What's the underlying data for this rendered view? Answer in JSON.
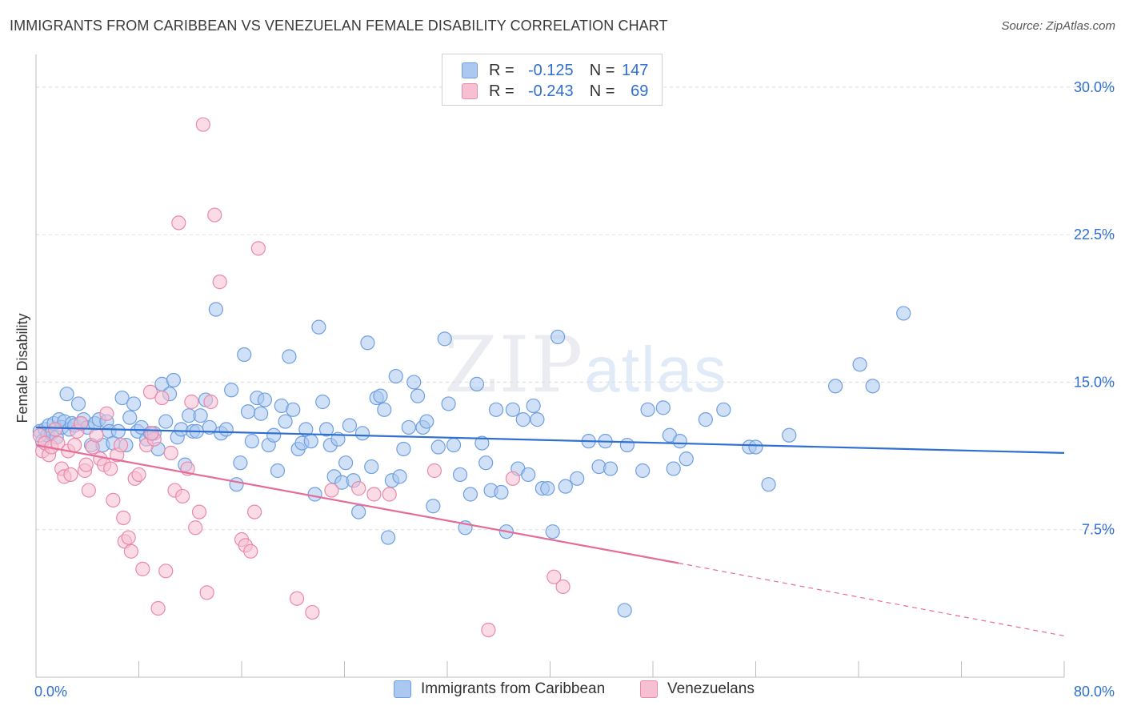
{
  "title": "IMMIGRANTS FROM CARIBBEAN VS VENEZUELAN FEMALE DISABILITY CORRELATION CHART",
  "source": "Source: ZipAtlas.com",
  "watermark": {
    "zip": "ZIP",
    "atlas": "atlas"
  },
  "legend": {
    "rows": [
      {
        "r_label": "R =",
        "r_value": "-0.125",
        "n_label": "N =",
        "n_value": "147",
        "color": "#aac8f0",
        "border": "#6f9fe0"
      },
      {
        "r_label": "R =",
        "r_value": "-0.243",
        "n_label": "N =",
        "n_value": "69",
        "color": "#f7c0d2",
        "border": "#e889a9"
      }
    ]
  },
  "bottom_legend": [
    {
      "label": "Immigrants from Caribbean",
      "color": "#aac8f0",
      "border": "#6f9fe0"
    },
    {
      "label": "Venezuelans",
      "color": "#f7c0d2",
      "border": "#e889a9"
    }
  ],
  "chart_data": {
    "type": "scatter",
    "ylabel": "Female Disability",
    "xlim": [
      0,
      80
    ],
    "ylim": [
      0,
      31.5
    ],
    "x_tick_labels": [
      {
        "value": 0,
        "label": "0.0%"
      },
      {
        "value": 80,
        "label": "80.0%"
      }
    ],
    "y_tick_labels": [
      {
        "value": 7.5,
        "label": "7.5%"
      },
      {
        "value": 15,
        "label": "15.0%"
      },
      {
        "value": 22.5,
        "label": "22.5%"
      },
      {
        "value": 30,
        "label": "30.0%"
      }
    ],
    "grid": true,
    "series": [
      {
        "name": "Immigrants from Caribbean",
        "color": "#aac8f0",
        "stroke": "#6f9fe0",
        "trend": {
          "x0": 0,
          "y0": 12.7,
          "x1": 80,
          "y1": 11.4,
          "color": "#2e6fd1"
        },
        "points": [
          [
            0.3,
            12.5
          ],
          [
            0.5,
            12.0
          ],
          [
            0.7,
            12.6
          ],
          [
            0.9,
            12.3
          ],
          [
            1.0,
            12.8
          ],
          [
            1.2,
            12.4
          ],
          [
            1.4,
            12.9
          ],
          [
            1.6,
            12.2
          ],
          [
            1.8,
            13.1
          ],
          [
            2.0,
            12.7
          ],
          [
            2.2,
            13.0
          ],
          [
            2.4,
            14.4
          ],
          [
            2.6,
            12.6
          ],
          [
            2.8,
            12.9
          ],
          [
            3.0,
            12.8
          ],
          [
            3.3,
            13.9
          ],
          [
            3.5,
            12.9
          ],
          [
            3.7,
            13.1
          ],
          [
            4.0,
            12.7
          ],
          [
            4.3,
            11.8
          ],
          [
            4.6,
            12.9
          ],
          [
            4.9,
            13.1
          ],
          [
            5.2,
            11.8
          ],
          [
            5.5,
            13.0
          ],
          [
            5.7,
            12.5
          ],
          [
            6.0,
            11.9
          ],
          [
            6.4,
            12.5
          ],
          [
            6.7,
            14.2
          ],
          [
            7.0,
            11.8
          ],
          [
            7.3,
            13.2
          ],
          [
            7.6,
            13.9
          ],
          [
            7.9,
            12.5
          ],
          [
            8.2,
            12.7
          ],
          [
            8.6,
            12.1
          ],
          [
            8.9,
            12.4
          ],
          [
            9.2,
            12.4
          ],
          [
            9.5,
            11.6
          ],
          [
            9.8,
            14.9
          ],
          [
            10.1,
            13.0
          ],
          [
            10.4,
            14.4
          ],
          [
            10.7,
            15.1
          ],
          [
            11.0,
            12.2
          ],
          [
            11.3,
            12.6
          ],
          [
            11.6,
            10.8
          ],
          [
            11.9,
            13.3
          ],
          [
            12.2,
            12.5
          ],
          [
            12.5,
            12.5
          ],
          [
            13.2,
            14.1
          ],
          [
            12.8,
            13.3
          ],
          [
            13.5,
            12.7
          ],
          [
            14.0,
            18.7
          ],
          [
            14.4,
            12.4
          ],
          [
            14.8,
            12.6
          ],
          [
            15.2,
            14.6
          ],
          [
            15.6,
            9.8
          ],
          [
            15.9,
            10.9
          ],
          [
            16.2,
            16.4
          ],
          [
            16.5,
            13.5
          ],
          [
            16.8,
            12.0
          ],
          [
            17.2,
            14.2
          ],
          [
            17.5,
            13.4
          ],
          [
            17.8,
            14.1
          ],
          [
            18.1,
            11.8
          ],
          [
            18.5,
            12.3
          ],
          [
            18.8,
            10.5
          ],
          [
            19.1,
            13.8
          ],
          [
            19.4,
            13.0
          ],
          [
            19.7,
            16.3
          ],
          [
            20.0,
            13.6
          ],
          [
            20.4,
            11.6
          ],
          [
            20.7,
            11.9
          ],
          [
            21.0,
            12.6
          ],
          [
            21.4,
            12.0
          ],
          [
            21.7,
            9.3
          ],
          [
            22.0,
            17.8
          ],
          [
            22.3,
            14.0
          ],
          [
            22.6,
            12.6
          ],
          [
            22.9,
            11.8
          ],
          [
            23.2,
            10.2
          ],
          [
            23.5,
            12.1
          ],
          [
            23.8,
            9.9
          ],
          [
            24.1,
            10.9
          ],
          [
            24.4,
            12.8
          ],
          [
            24.7,
            10.0
          ],
          [
            25.1,
            8.4
          ],
          [
            25.4,
            12.4
          ],
          [
            25.8,
            17.0
          ],
          [
            26.1,
            10.7
          ],
          [
            26.5,
            14.2
          ],
          [
            26.8,
            14.3
          ],
          [
            27.1,
            13.6
          ],
          [
            27.4,
            7.1
          ],
          [
            27.7,
            10.0
          ],
          [
            28.0,
            15.3
          ],
          [
            28.3,
            10.2
          ],
          [
            28.6,
            11.6
          ],
          [
            29.0,
            12.7
          ],
          [
            29.4,
            15.0
          ],
          [
            29.7,
            14.3
          ],
          [
            30.1,
            12.7
          ],
          [
            30.4,
            13.0
          ],
          [
            30.9,
            8.7
          ],
          [
            31.3,
            11.7
          ],
          [
            31.8,
            17.2
          ],
          [
            32.1,
            13.9
          ],
          [
            32.5,
            11.8
          ],
          [
            33.0,
            10.3
          ],
          [
            33.4,
            7.6
          ],
          [
            33.8,
            9.3
          ],
          [
            34.3,
            14.9
          ],
          [
            34.7,
            11.9
          ],
          [
            35.0,
            10.9
          ],
          [
            35.4,
            9.5
          ],
          [
            35.8,
            13.6
          ],
          [
            36.2,
            9.4
          ],
          [
            36.6,
            7.4
          ],
          [
            37.1,
            13.6
          ],
          [
            37.5,
            10.6
          ],
          [
            37.9,
            13.1
          ],
          [
            38.3,
            10.3
          ],
          [
            38.7,
            13.8
          ],
          [
            39.0,
            13.1
          ],
          [
            39.4,
            9.6
          ],
          [
            39.8,
            9.6
          ],
          [
            40.2,
            7.4
          ],
          [
            40.6,
            17.3
          ],
          [
            41.2,
            9.7
          ],
          [
            42.1,
            10.1
          ],
          [
            43.0,
            12.0
          ],
          [
            43.8,
            10.7
          ],
          [
            44.7,
            10.6
          ],
          [
            46.0,
            11.8
          ],
          [
            47.2,
            10.5
          ],
          [
            47.6,
            13.6
          ],
          [
            48.8,
            13.7
          ],
          [
            49.3,
            12.3
          ],
          [
            49.6,
            10.6
          ],
          [
            50.1,
            12.0
          ],
          [
            50.6,
            11.1
          ],
          [
            52.1,
            13.1
          ],
          [
            53.5,
            13.6
          ],
          [
            55.5,
            11.7
          ],
          [
            56.0,
            11.7
          ],
          [
            57.0,
            9.8
          ],
          [
            58.6,
            12.3
          ],
          [
            62.2,
            14.8
          ],
          [
            64.1,
            15.9
          ],
          [
            65.1,
            14.8
          ],
          [
            67.5,
            18.5
          ],
          [
            45.8,
            3.4
          ],
          [
            44.3,
            12.0
          ]
        ]
      },
      {
        "name": "Venezuelans",
        "color": "#f7c0d2",
        "stroke": "#e889a9",
        "trend": {
          "x0": 0,
          "y0": 11.8,
          "x1": 50,
          "y1": 5.8,
          "dash_x1": 80,
          "dash_y1": 2.1,
          "color": "#e56d98"
        },
        "points": [
          [
            0.3,
            12.3
          ],
          [
            0.5,
            11.5
          ],
          [
            0.7,
            11.9
          ],
          [
            1.0,
            11.3
          ],
          [
            1.2,
            11.7
          ],
          [
            1.5,
            12.6
          ],
          [
            1.7,
            11.9
          ],
          [
            2.0,
            10.6
          ],
          [
            2.2,
            10.2
          ],
          [
            2.5,
            11.5
          ],
          [
            2.7,
            10.3
          ],
          [
            3.0,
            11.8
          ],
          [
            3.2,
            12.5
          ],
          [
            3.5,
            12.9
          ],
          [
            3.8,
            10.5
          ],
          [
            4.1,
            9.5
          ],
          [
            4.4,
            11.7
          ],
          [
            4.7,
            12.3
          ],
          [
            5.0,
            11.1
          ],
          [
            5.3,
            10.8
          ],
          [
            5.5,
            13.4
          ],
          [
            5.8,
            10.6
          ],
          [
            6.0,
            9.0
          ],
          [
            6.3,
            11.3
          ],
          [
            6.6,
            11.8
          ],
          [
            6.9,
            6.9
          ],
          [
            7.2,
            7.1
          ],
          [
            7.4,
            6.4
          ],
          [
            7.7,
            10.1
          ],
          [
            8.0,
            10.3
          ],
          [
            8.3,
            5.5
          ],
          [
            8.6,
            11.8
          ],
          [
            8.9,
            14.5
          ],
          [
            9.2,
            12.1
          ],
          [
            9.5,
            3.5
          ],
          [
            9.8,
            14.2
          ],
          [
            10.1,
            5.4
          ],
          [
            10.5,
            11.4
          ],
          [
            10.8,
            9.5
          ],
          [
            11.1,
            23.1
          ],
          [
            11.4,
            9.2
          ],
          [
            11.8,
            10.6
          ],
          [
            12.1,
            14.0
          ],
          [
            12.4,
            7.6
          ],
          [
            12.7,
            8.4
          ],
          [
            13.0,
            28.1
          ],
          [
            13.3,
            4.3
          ],
          [
            13.6,
            14.0
          ],
          [
            13.9,
            23.5
          ],
          [
            14.3,
            20.1
          ],
          [
            16.0,
            7.0
          ],
          [
            16.3,
            6.7
          ],
          [
            16.7,
            6.4
          ],
          [
            17.0,
            8.4
          ],
          [
            17.3,
            21.8
          ],
          [
            20.3,
            4.0
          ],
          [
            21.5,
            3.3
          ],
          [
            23.0,
            9.5
          ],
          [
            25.1,
            9.6
          ],
          [
            26.3,
            9.3
          ],
          [
            27.5,
            9.3
          ],
          [
            31.0,
            10.5
          ],
          [
            35.2,
            2.4
          ],
          [
            37.1,
            10.1
          ],
          [
            40.3,
            5.1
          ],
          [
            41.0,
            4.6
          ],
          [
            3.9,
            10.8
          ],
          [
            6.8,
            8.1
          ],
          [
            9.0,
            12.4
          ]
        ]
      }
    ]
  }
}
